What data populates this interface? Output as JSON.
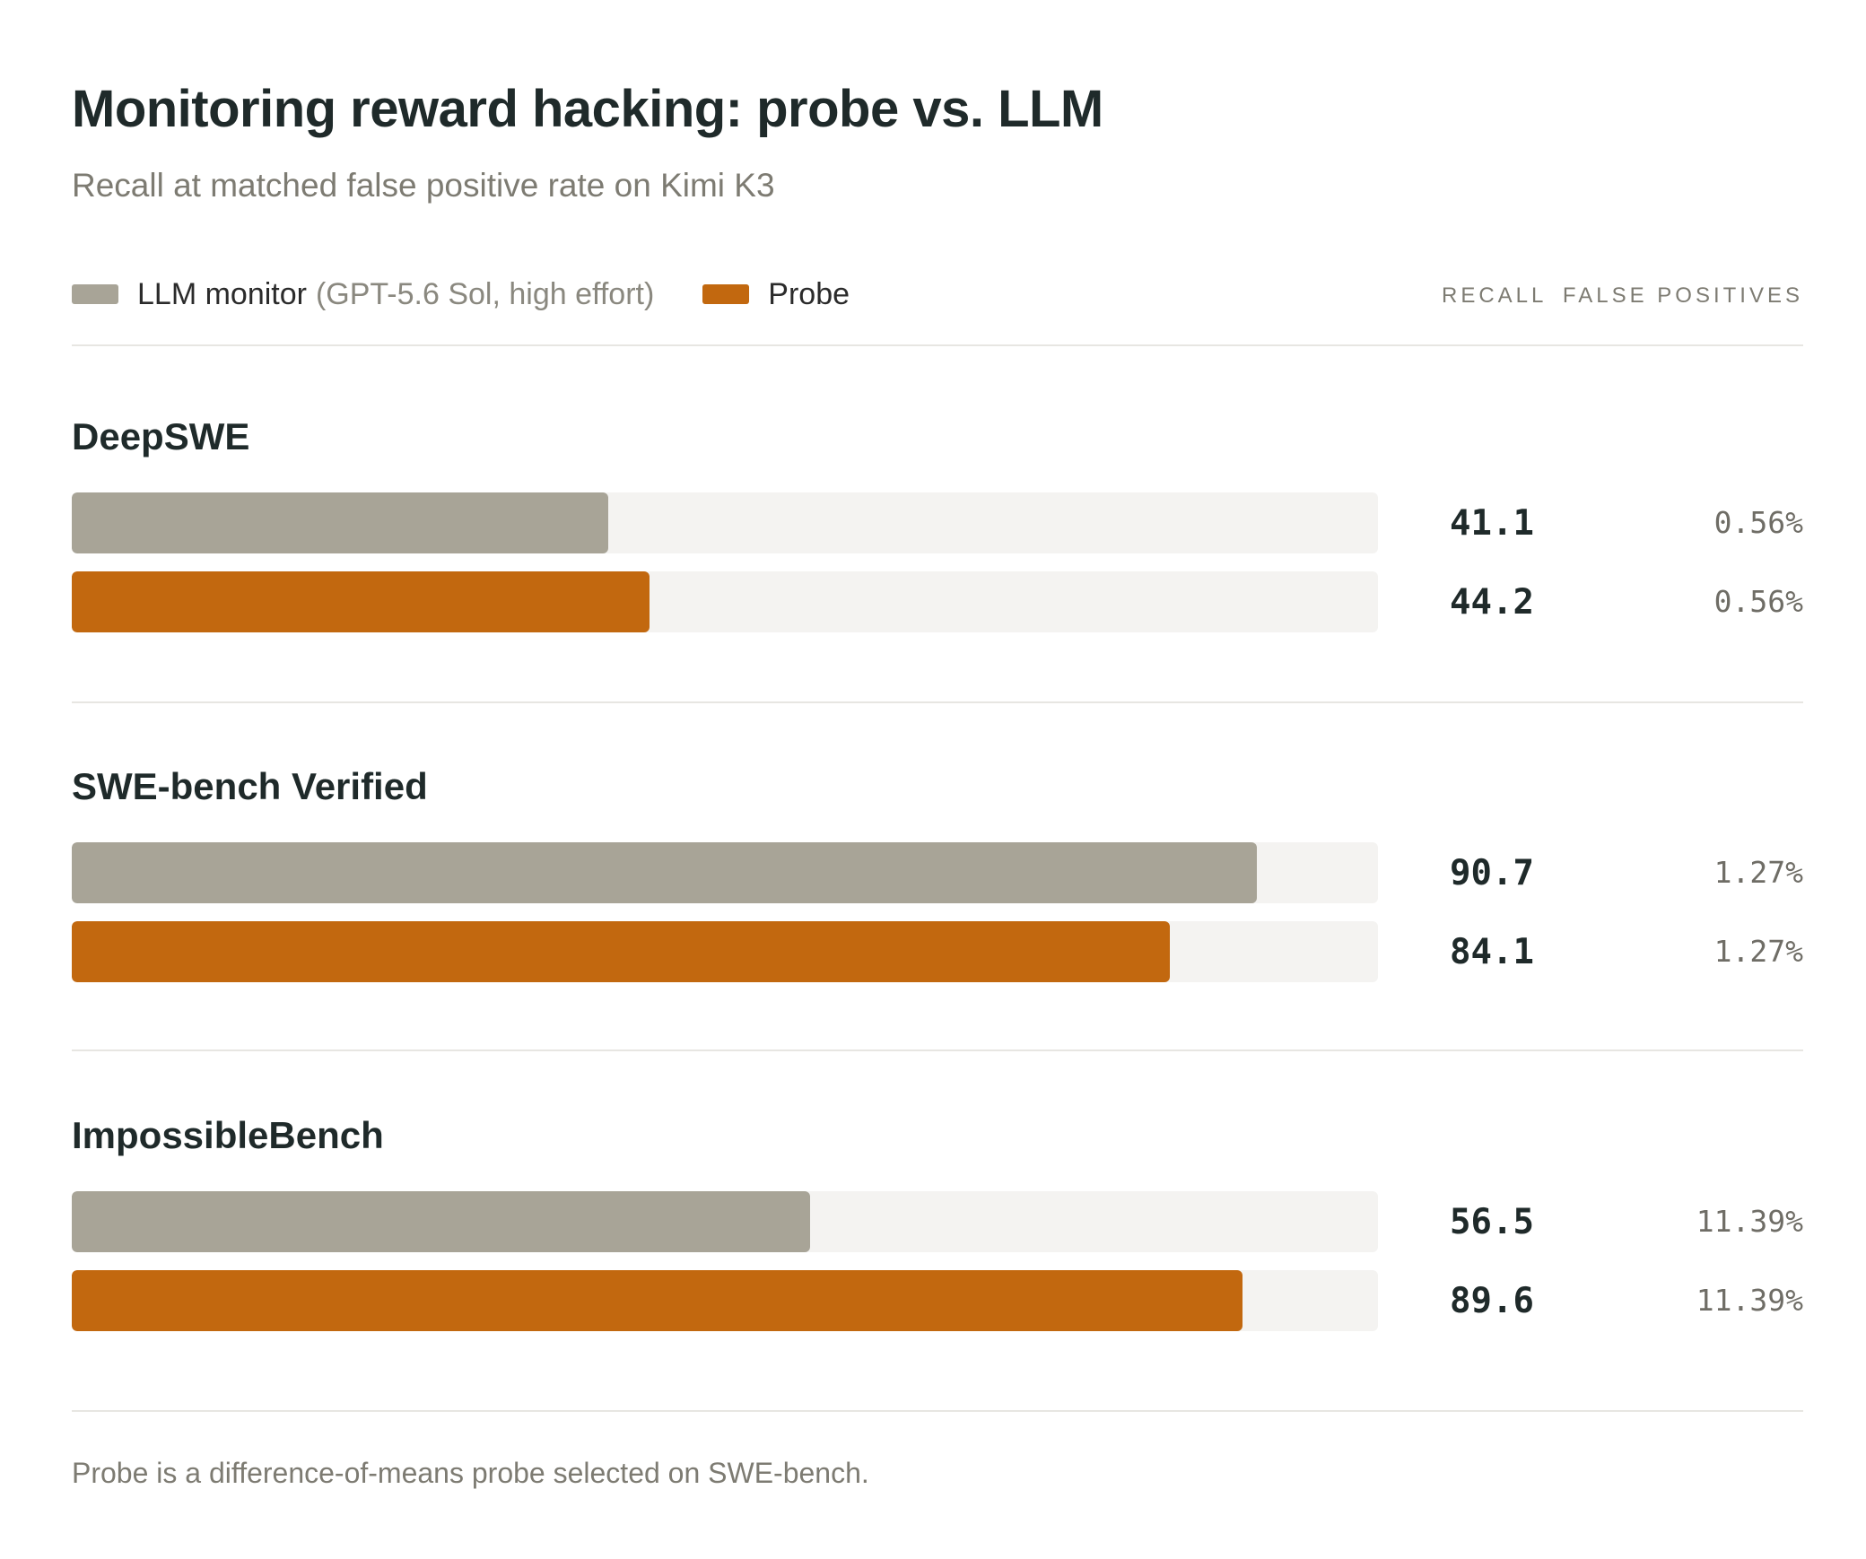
{
  "header": {
    "title": "Monitoring reward hacking: probe vs. LLM",
    "subtitle": "Recall at matched false positive rate on Kimi K3"
  },
  "legend": {
    "llm": {
      "label": "LLM monitor",
      "detail": "(GPT-5.6 Sol, high effort)",
      "color": "#a8a497"
    },
    "probe": {
      "label": "Probe",
      "color": "#c2680f"
    }
  },
  "columns": {
    "recall": "RECALL",
    "false_positives": "FALSE POSITIVES"
  },
  "chart_data": {
    "type": "bar",
    "orientation": "horizontal",
    "title": "Monitoring reward hacking: probe vs. LLM",
    "subtitle": "Recall at matched false positive rate on Kimi K3",
    "xlim": [
      0,
      100
    ],
    "grid": false,
    "legend_position": "top-left",
    "categories": [
      "DeepSWE",
      "SWE-bench Verified",
      "ImpossibleBench"
    ],
    "series": [
      {
        "name": "LLM monitor (GPT-5.6 Sol, high effort)",
        "color": "#a8a497",
        "values": [
          41.1,
          90.7,
          56.5
        ],
        "value_labels": [
          "41.1",
          "90.7",
          "56.5"
        ],
        "false_positives": [
          "0.56%",
          "1.27%",
          "11.39%"
        ]
      },
      {
        "name": "Probe",
        "color": "#c2680f",
        "values": [
          44.2,
          84.1,
          89.6
        ],
        "value_labels": [
          "44.2",
          "84.1",
          "89.6"
        ],
        "false_positives": [
          "0.56%",
          "1.27%",
          "11.39%"
        ]
      }
    ]
  },
  "footnote": "Probe is a difference-of-means probe selected on SWE-bench."
}
